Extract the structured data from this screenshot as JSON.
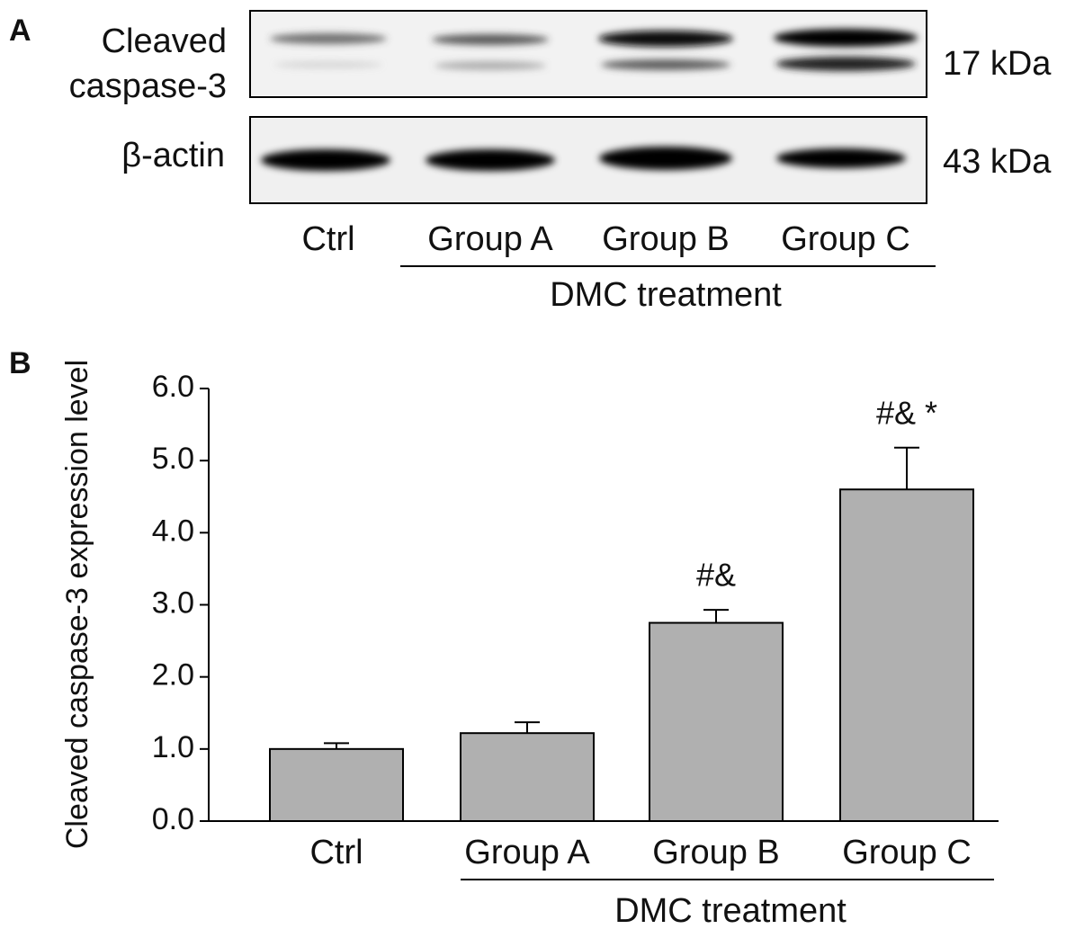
{
  "panel_labels": [
    "A",
    "B"
  ],
  "blot": {
    "rows": [
      {
        "label_lines": [
          "Cleaved",
          "caspase-3"
        ],
        "size": "17 kDa"
      },
      {
        "label_lines": [
          "β-actin"
        ],
        "size": "43 kDa"
      }
    ],
    "lanes": [
      "Ctrl",
      "Group A",
      "Group B",
      "Group C"
    ],
    "group_label": "DMC treatment"
  },
  "chart_data": {
    "type": "bar",
    "y_label": "Cleaved caspase-3 expression level",
    "categories": [
      "Ctrl",
      "Group A",
      "Group B",
      "Group C"
    ],
    "values": [
      1.0,
      1.22,
      2.75,
      4.6
    ],
    "errors": [
      0.08,
      0.15,
      0.18,
      0.58
    ],
    "color": "#b0b0b0",
    "ylim": [
      0,
      6
    ],
    "yticks": [
      {
        "value": 0,
        "label": "0.0"
      },
      {
        "value": 1,
        "label": "1.0"
      },
      {
        "value": 2,
        "label": "2.0"
      },
      {
        "value": 3,
        "label": "3.0"
      },
      {
        "value": 4,
        "label": "4.0"
      },
      {
        "value": 5,
        "label": "5.0"
      },
      {
        "value": 6,
        "label": "6.0"
      }
    ],
    "annotations": [
      {
        "category": "Group B",
        "text": "#&"
      },
      {
        "category": "Group C",
        "text": "#& *"
      }
    ],
    "group_label": "DMC treatment"
  }
}
